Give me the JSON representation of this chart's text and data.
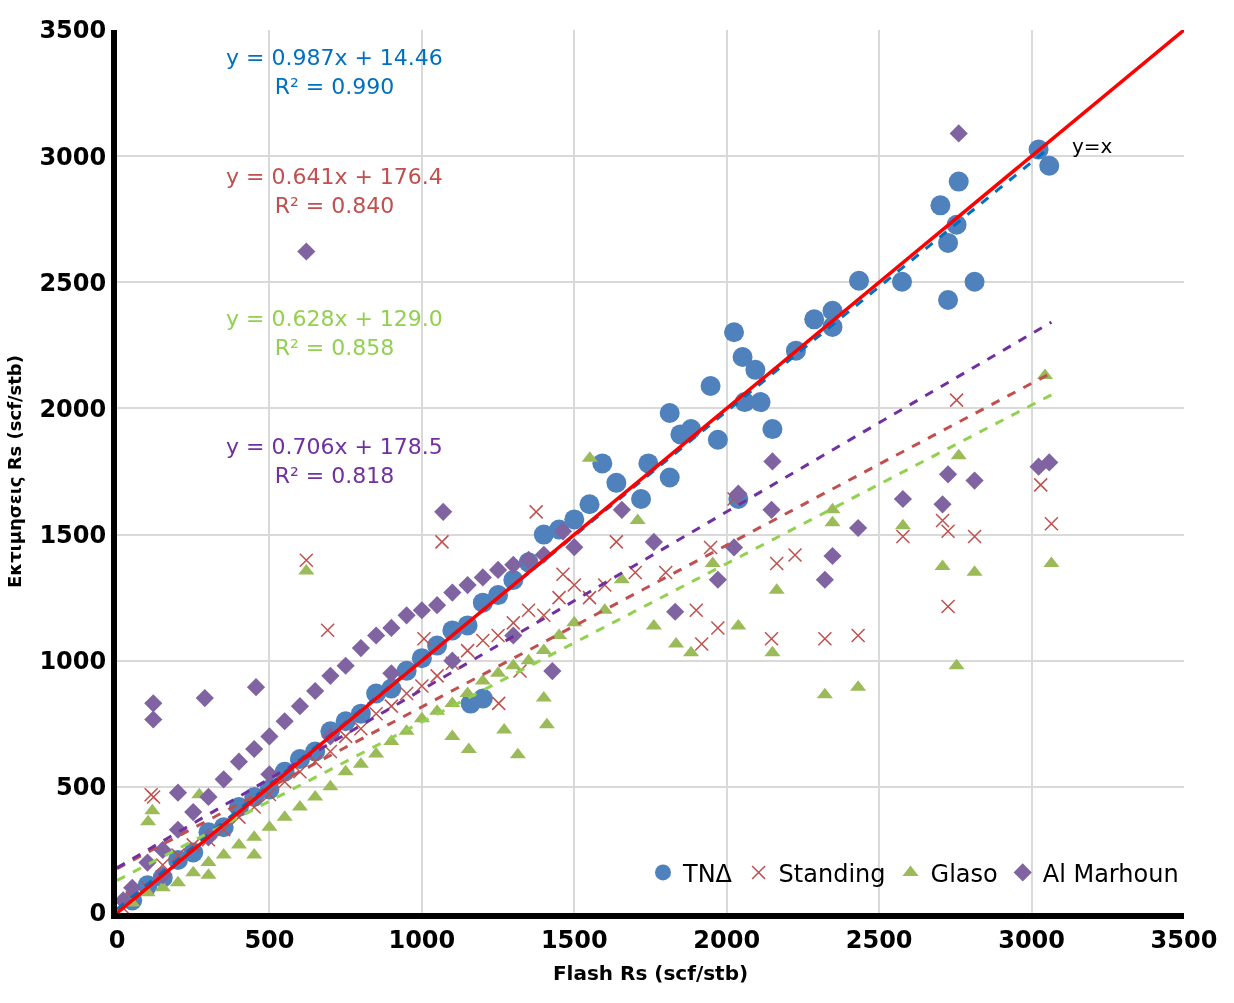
{
  "chart_data": {
    "type": "scatter",
    "xlabel": "Flash Rs (scf/stb)",
    "ylabel": "Εκτιμησεις Rs (scf/stb)",
    "xlim": [
      0,
      3500
    ],
    "ylim": [
      0,
      3500
    ],
    "xticks": [
      0,
      500,
      1000,
      1500,
      2000,
      2500,
      3000,
      3500
    ],
    "yticks": [
      0,
      500,
      1000,
      1500,
      2000,
      2500,
      3000,
      3500
    ],
    "grid": true,
    "legend": "bottom right",
    "series": [
      {
        "name": "TNΔ",
        "color": "#4f81bd",
        "marker": "circle",
        "x": [
          50,
          100,
          150,
          200,
          250,
          300,
          350,
          400,
          450,
          500,
          550,
          600,
          650,
          700,
          750,
          800,
          850,
          900,
          950,
          1000,
          1050,
          1100,
          1150,
          1200,
          1250,
          1300,
          1350,
          1400,
          1450,
          1500,
          1550,
          1200,
          1160,
          1592,
          1638,
          1743,
          1719,
          1813,
          1848,
          1813,
          1883,
          1947,
          1971,
          2024,
          2052,
          2094,
          2059,
          2038,
          2111,
          2150,
          2227,
          2287,
          2347,
          2347,
          2434,
          2575,
          2701,
          2726,
          2754,
          2761,
          2726,
          2813,
          3023,
          3058
        ],
        "values": [
          50,
          110,
          140,
          210,
          240,
          320,
          340,
          420,
          460,
          490,
          560,
          610,
          640,
          720,
          760,
          790,
          870,
          890,
          960,
          1010,
          1060,
          1120,
          1140,
          1230,
          1260,
          1320,
          1390,
          1500,
          1520,
          1560,
          1620,
          850,
          830,
          1782,
          1705,
          1782,
          1641,
          1982,
          1897,
          1726,
          1918,
          2089,
          1876,
          2302,
          2204,
          2153,
          2025,
          1641,
          2025,
          1918,
          2229,
          2353,
          2387,
          2323,
          2506,
          2502,
          2805,
          2656,
          2728,
          2899,
          2430,
          2502,
          3026,
          2962
        ]
      },
      {
        "name": "Standing",
        "color": "#c0504d",
        "marker": "cross",
        "x": [
          621,
          691,
          112,
          1375,
          1066,
          2754,
          2726,
          2708,
          2726,
          2578,
          2813,
          3030,
          3065,
          2431,
          2322,
          2147,
          1918,
          1971,
          2164,
          2224,
          2024,
          1947,
          1638,
          1463,
          1322,
          1252,
          1007,
          100,
          150,
          200,
          250,
          300,
          350,
          400,
          450,
          500,
          550,
          600,
          650,
          700,
          750,
          800,
          850,
          900,
          950,
          1000,
          1050,
          1100,
          1150,
          1200,
          1250,
          1300,
          1350,
          1400,
          1450,
          1500,
          1550,
          1600,
          1700,
          1800,
          1900,
          50,
          20,
          120
        ],
        "values": [
          1398,
          1121,
          469,
          1590,
          1471,
          2033,
          1215,
          1556,
          1513,
          1492,
          1492,
          1697,
          1543,
          1100,
          1087,
          1087,
          1066,
          1130,
          1385,
          1419,
          1641,
          1449,
          1471,
          1343,
          959,
          831,
          1087,
          100,
          190,
          230,
          270,
          290,
          330,
          380,
          420,
          470,
          520,
          560,
          600,
          640,
          700,
          730,
          790,
          820,
          870,
          900,
          940,
          990,
          1040,
          1080,
          1100,
          1150,
          1200,
          1180,
          1250,
          1300,
          1250,
          1300,
          1350,
          1350,
          1200,
          60,
          20,
          460
        ]
      },
      {
        "name": "Glaso",
        "color": "#9bbb59",
        "marker": "triangle",
        "x": [
          621,
          1551,
          3044,
          2761,
          2754,
          3065,
          2813,
          2708,
          2578,
          2431,
          2322,
          2150,
          1883,
          1834,
          1954,
          2038,
          2164,
          2347,
          2347,
          1315,
          1154,
          1410,
          1400,
          1270,
          1656,
          1708,
          1761,
          102,
          116,
          270,
          50,
          100,
          150,
          200,
          250,
          300,
          350,
          400,
          450,
          500,
          550,
          600,
          650,
          700,
          750,
          800,
          850,
          900,
          950,
          1000,
          1050,
          1100,
          1150,
          1200,
          1250,
          1300,
          1350,
          1400,
          1450,
          1500,
          1600,
          300,
          450,
          1100
        ],
        "values": [
          1356,
          1803,
          2131,
          1812,
          980,
          1385,
          1351,
          1373,
          1535,
          895,
          865,
          1032,
          1032,
          1066,
          1385,
          1138,
          1279,
          1598,
          1547,
          627,
          648,
          746,
          852,
          725,
          1321,
          1556,
          1138,
          362,
          405,
          469,
          40,
          80,
          100,
          120,
          160,
          200,
          230,
          270,
          300,
          340,
          380,
          420,
          460,
          500,
          560,
          590,
          630,
          680,
          720,
          770,
          800,
          830,
          870,
          920,
          950,
          980,
          1000,
          1040,
          1100,
          1150,
          1200,
          150,
          230,
          700
        ]
      },
      {
        "name": "Al Marhoun",
        "color": "#8064a2",
        "marker": "diamond",
        "x": [
          621,
          2761,
          1070,
          119,
          119,
          288,
          200,
          456,
          3023,
          3058,
          2813,
          2726,
          2708,
          2578,
          2431,
          2347,
          2322,
          2150,
          2038,
          2147,
          2024,
          1971,
          1831,
          1761,
          1656,
          1463,
          1428,
          50,
          100,
          150,
          200,
          250,
          300,
          350,
          400,
          450,
          500,
          550,
          600,
          650,
          700,
          750,
          800,
          850,
          900,
          950,
          1000,
          1050,
          1100,
          1150,
          1200,
          1250,
          1300,
          1350,
          1400,
          1500,
          150,
          300,
          500,
          700,
          900,
          1100,
          1300,
          20
        ],
        "values": [
          2622,
          3090,
          1590,
          831,
          767,
          852,
          477,
          895,
          1769,
          1786,
          1714,
          1739,
          1620,
          1641,
          1526,
          1415,
          1321,
          1790,
          1662,
          1598,
          1449,
          1321,
          1194,
          1471,
          1598,
          1513,
          959,
          100,
          200,
          250,
          330,
          400,
          460,
          530,
          600,
          650,
          700,
          760,
          820,
          880,
          940,
          980,
          1050,
          1100,
          1130,
          1180,
          1200,
          1220,
          1270,
          1300,
          1330,
          1360,
          1380,
          1400,
          1420,
          1450,
          150,
          300,
          550,
          700,
          950,
          1000,
          1100,
          50
        ]
      },
      {
        "type": "line",
        "color": "#0070c0",
        "line_style": "dashed",
        "marker": "none",
        "x": [
          0,
          3050
        ],
        "values": [
          15,
          3025
        ]
      },
      {
        "type": "line",
        "color": "#c0504d",
        "line_style": "dashed",
        "marker": "none",
        "x": [
          0,
          3065
        ],
        "values": [
          176,
          2141
        ]
      },
      {
        "type": "line",
        "color": "#92d050",
        "line_style": "dashed",
        "marker": "none",
        "x": [
          0,
          3065
        ],
        "values": [
          129.0,
          2054
        ]
      },
      {
        "type": "line",
        "color": "#7030a0",
        "line_style": "dashed",
        "marker": "none",
        "x": [
          0,
          3065
        ],
        "values": [
          179,
          2342
        ]
      },
      {
        "type": "line",
        "color": "#ff0000",
        "line_style": "solid",
        "marker": "none",
        "x": [
          0,
          3500
        ],
        "values": [
          0,
          3500
        ]
      }
    ],
    "annotations": [
      "y = 0.987x + 14.46\nR² = 0.990",
      "y = 0.641x + 176.4\nR² = 0.840",
      "y = 0.628x + 129.0\nR² = 0.858",
      "y = 0.706x + 178.5\nR² = 0.818",
      "y=x"
    ]
  }
}
